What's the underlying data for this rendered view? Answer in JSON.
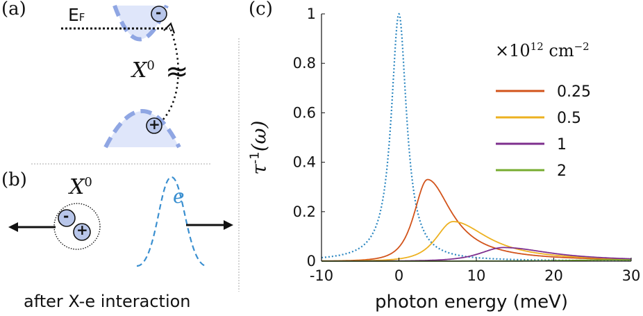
{
  "panels": {
    "a": {
      "label": "(a)",
      "fermi_label": "E",
      "fermi_sub": "F",
      "exciton_label": "X",
      "exciton_sup": "0",
      "approx_symbol": "≈",
      "electron_symbol": "-",
      "hole_symbol": "+"
    },
    "b": {
      "label": "(b)",
      "exciton_label": "X",
      "exciton_sup": "0",
      "electron_label": "e",
      "electron_symbol": "-",
      "hole_symbol": "+",
      "caption": "after X-e interaction"
    },
    "c": {
      "label": "(c)"
    }
  },
  "colors": {
    "band_fill": "#dfe6fa",
    "band_dash": "#8fa6e3",
    "particle": "#b8c6ea",
    "wave": "#3a8fd0"
  },
  "chart_data": {
    "type": "line",
    "xlabel": "photon energy (meV)",
    "ylabel": "τ",
    "ylabel_sup": "-1",
    "ylabel_arg": "(ω)",
    "xlim": [
      -10,
      30
    ],
    "ylim": [
      0,
      1
    ],
    "xticks": [
      -10,
      0,
      10,
      20,
      30
    ],
    "yticks": [
      0,
      0.2,
      0.4,
      0.6,
      0.8,
      1
    ],
    "xtick_labels": [
      "-10",
      "0",
      "10",
      "20",
      "30"
    ],
    "ytick_labels": [
      "0",
      "0.2",
      "0.4",
      "0.6",
      "0.8",
      "1"
    ],
    "legend_title": "×10",
    "legend_title_exp": "12",
    "legend_title_unit": "cm",
    "legend_title_unit_exp": "−2",
    "legend_position": "top-right",
    "reference": {
      "name": "exciton line",
      "style": "dotted",
      "color": "#2a86c0",
      "peak_x": 0,
      "peak_y": 1.0,
      "width": 1.2
    },
    "series": [
      {
        "name": "0.25",
        "color": "#d2531a",
        "peak_x": 3.7,
        "peak_y": 0.33,
        "width_left": 2.2,
        "width_right": 3.8
      },
      {
        "name": "0.5",
        "color": "#edb120",
        "peak_x": 7.0,
        "peak_y": 0.16,
        "width_left": 2.8,
        "width_right": 5.5
      },
      {
        "name": "1",
        "color": "#7e2f8e",
        "peak_x": 13.5,
        "peak_y": 0.055,
        "width_left": 3.8,
        "width_right": 7.5
      },
      {
        "name": "2",
        "color": "#77ac30",
        "peak_x": 27,
        "peak_y": 0.005,
        "width_left": 6,
        "width_right": 10
      }
    ]
  }
}
